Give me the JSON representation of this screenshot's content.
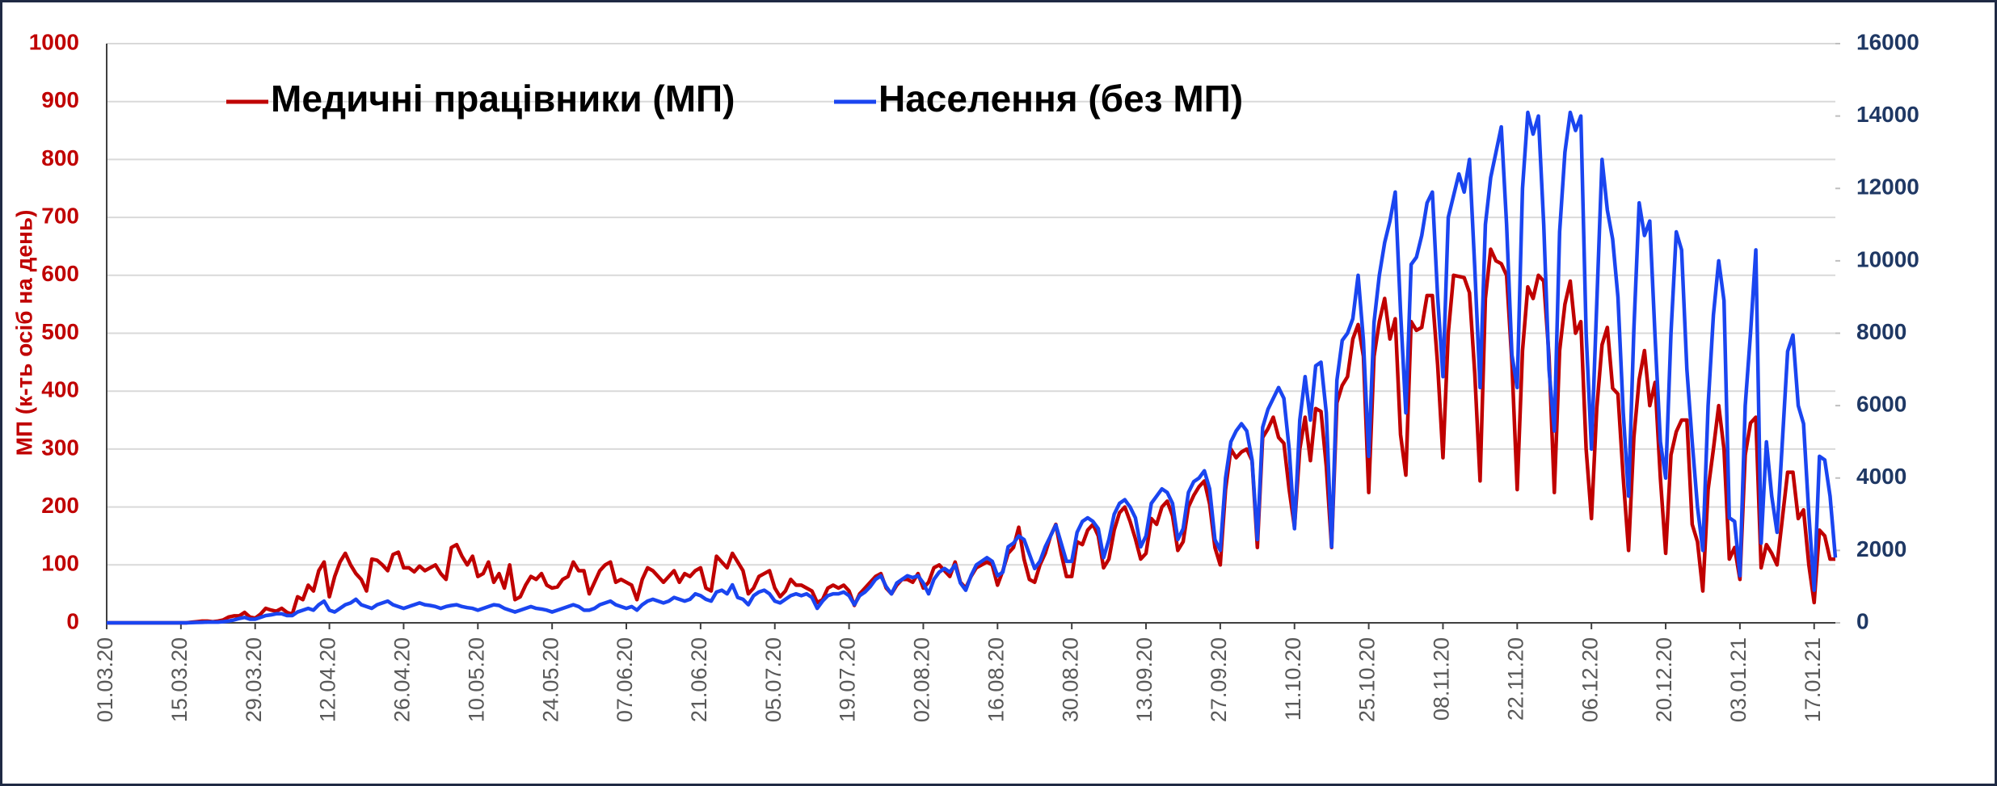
{
  "chart_data": {
    "type": "line",
    "ylabel": "МП (к-ть осіб на день)",
    "legend": "top-left",
    "grid": true,
    "ylim": [
      0,
      1000
    ],
    "yticks": [
      0,
      100,
      200,
      300,
      400,
      500,
      600,
      700,
      800,
      900,
      1000
    ],
    "y2lim": [
      0,
      16000
    ],
    "y2ticks": [
      0,
      2000,
      4000,
      6000,
      8000,
      10000,
      12000,
      14000,
      16000
    ],
    "categories": [
      "01.03.20",
      null,
      null,
      null,
      null,
      null,
      null,
      null,
      null,
      null,
      null,
      null,
      null,
      null,
      "15.03.20",
      null,
      null,
      null,
      null,
      null,
      null,
      null,
      null,
      null,
      null,
      null,
      null,
      null,
      "29.03.20",
      null,
      null,
      null,
      null,
      null,
      null,
      null,
      null,
      null,
      null,
      null,
      null,
      null,
      "12.04.20",
      null,
      null,
      null,
      null,
      null,
      null,
      null,
      null,
      null,
      null,
      null,
      null,
      null,
      "26.04.20",
      null,
      null,
      null,
      null,
      null,
      null,
      null,
      null,
      null,
      null,
      null,
      null,
      null,
      "10.05.20",
      null,
      null,
      null,
      null,
      null,
      null,
      null,
      null,
      null,
      null,
      null,
      null,
      null,
      "24.05.20",
      null,
      null,
      null,
      null,
      null,
      null,
      null,
      null,
      null,
      null,
      null,
      null,
      null,
      "07.06.20",
      null,
      null,
      null,
      null,
      null,
      null,
      null,
      null,
      null,
      null,
      null,
      null,
      null,
      "21.06.20",
      null,
      null,
      null,
      null,
      null,
      null,
      null,
      null,
      null,
      null,
      null,
      null,
      null,
      "05.07.20",
      null,
      null,
      null,
      null,
      null,
      null,
      null,
      null,
      null,
      null,
      null,
      null,
      null,
      "19.07.20",
      null,
      null,
      null,
      null,
      null,
      null,
      null,
      null,
      null,
      null,
      null,
      null,
      null,
      "02.08.20",
      null,
      null,
      null,
      null,
      null,
      null,
      null,
      null,
      null,
      null,
      null,
      null,
      null,
      "16.08.20",
      null,
      null,
      null,
      null,
      null,
      null,
      null,
      null,
      null,
      null,
      null,
      null,
      null,
      "30.08.20",
      null,
      null,
      null,
      null,
      null,
      null,
      null,
      null,
      null,
      null,
      null,
      null,
      null,
      "13.09.20",
      null,
      null,
      null,
      null,
      null,
      null,
      null,
      null,
      null,
      null,
      null,
      null,
      null,
      "27.09.20",
      null,
      null,
      null,
      null,
      null,
      null,
      null,
      null,
      null,
      null,
      null,
      null,
      null,
      "11.10.20",
      null,
      null,
      null,
      null,
      null,
      null,
      null,
      null,
      null,
      null,
      null,
      null,
      null,
      "25.10.20",
      null,
      null,
      null,
      null,
      null,
      null,
      null,
      null,
      null,
      null,
      null,
      null,
      null,
      "08.11.20",
      null,
      null,
      null,
      null,
      null,
      null,
      null,
      null,
      null,
      null,
      null,
      null,
      null,
      "22.11.20",
      null,
      null,
      null,
      null,
      null,
      null,
      null,
      null,
      null,
      null,
      null,
      null,
      null,
      "06.12.20",
      null,
      null,
      null,
      null,
      null,
      null,
      null,
      null,
      null,
      null,
      null,
      null,
      null,
      "20.12.20",
      null,
      null,
      null,
      null,
      null,
      null,
      null,
      null,
      null,
      null,
      null,
      null,
      null,
      "03.01.21",
      null,
      null,
      null,
      null,
      null,
      null,
      null,
      null,
      null,
      null,
      null,
      null,
      null,
      "17.01.21",
      null,
      null,
      null,
      null
    ],
    "series": [
      {
        "name": "Медичні працівники (МП)",
        "color": "#c00000",
        "values": [
          0,
          0,
          0,
          0,
          0,
          0,
          0,
          0,
          0,
          0,
          0,
          0,
          0,
          0,
          0,
          0,
          1,
          2,
          3,
          3,
          2,
          3,
          5,
          10,
          12,
          12,
          18,
          10,
          8,
          15,
          25,
          22,
          20,
          25,
          18,
          15,
          45,
          40,
          65,
          55,
          90,
          105,
          45,
          80,
          105,
          120,
          100,
          85,
          75,
          55,
          110,
          108,
          100,
          90,
          118,
          122,
          95,
          95,
          88,
          98,
          90,
          95,
          100,
          85,
          75,
          130,
          135,
          115,
          100,
          115,
          80,
          85,
          105,
          70,
          85,
          60,
          100,
          40,
          45,
          65,
          80,
          75,
          85,
          65,
          60,
          62,
          75,
          80,
          105,
          90,
          90,
          50,
          70,
          90,
          100,
          105,
          70,
          75,
          70,
          65,
          40,
          75,
          95,
          90,
          80,
          70,
          80,
          90,
          70,
          85,
          80,
          90,
          95,
          60,
          55,
          115,
          105,
          95,
          120,
          105,
          90,
          50,
          60,
          80,
          85,
          90,
          60,
          45,
          55,
          75,
          65,
          65,
          60,
          55,
          35,
          40,
          60,
          65,
          60,
          65,
          55,
          30,
          50,
          60,
          70,
          80,
          85,
          60,
          50,
          65,
          75,
          75,
          70,
          85,
          60,
          70,
          95,
          100,
          90,
          80,
          105,
          70,
          60,
          80,
          95,
          100,
          105,
          100,
          65,
          90,
          120,
          130,
          165,
          110,
          75,
          70,
          100,
          120,
          150,
          170,
          120,
          80,
          80,
          140,
          135,
          160,
          170,
          150,
          95,
          110,
          160,
          190,
          200,
          175,
          145,
          110,
          120,
          180,
          170,
          200,
          210,
          185,
          125,
          140,
          200,
          220,
          235,
          245,
          205,
          130,
          100,
          230,
          300,
          285,
          295,
          300,
          280,
          130,
          320,
          335,
          355,
          320,
          310,
          230,
          165,
          300,
          355,
          280,
          370,
          365,
          270,
          130,
          380,
          410,
          425,
          490,
          515,
          460,
          225,
          460,
          520,
          560,
          490,
          525,
          325,
          255,
          520,
          505,
          510,
          565,
          565,
          445,
          285,
          500,
          600,
          598,
          596,
          570,
          430,
          245,
          560,
          645,
          625,
          620,
          600,
          450,
          230,
          470,
          580,
          560,
          600,
          590,
          460,
          225,
          470,
          550,
          590,
          500,
          520,
          300,
          180,
          370,
          480,
          510,
          405,
          395,
          250,
          125,
          320,
          420,
          470,
          375,
          415,
          250,
          120,
          290,
          330,
          350,
          350,
          170,
          140,
          55,
          230,
          300,
          375,
          300,
          110,
          130,
          75,
          290,
          345,
          355,
          95,
          135,
          120,
          100,
          180,
          260,
          260,
          180,
          195,
          100,
          35,
          160,
          150,
          110,
          110
        ]
      },
      {
        "name": "Населення (без МП)",
        "color": "#1a45f0",
        "axis": "y2",
        "values": [
          0,
          0,
          0,
          0,
          0,
          0,
          0,
          0,
          0,
          0,
          0,
          0,
          0,
          0,
          0,
          0,
          5,
          10,
          15,
          20,
          20,
          20,
          30,
          50,
          80,
          120,
          150,
          100,
          100,
          150,
          200,
          220,
          250,
          250,
          200,
          200,
          300,
          350,
          400,
          350,
          500,
          600,
          350,
          300,
          400,
          500,
          550,
          650,
          500,
          450,
          400,
          500,
          550,
          600,
          500,
          450,
          400,
          450,
          500,
          550,
          500,
          480,
          450,
          400,
          450,
          480,
          500,
          450,
          420,
          400,
          350,
          400,
          450,
          500,
          480,
          400,
          350,
          300,
          350,
          400,
          450,
          400,
          380,
          350,
          300,
          350,
          400,
          450,
          500,
          450,
          350,
          350,
          400,
          500,
          550,
          600,
          500,
          450,
          400,
          450,
          350,
          500,
          600,
          650,
          600,
          550,
          600,
          700,
          650,
          600,
          650,
          800,
          750,
          650,
          600,
          850,
          900,
          800,
          1050,
          700,
          650,
          500,
          750,
          850,
          900,
          800,
          600,
          550,
          650,
          750,
          800,
          750,
          800,
          700,
          400,
          600,
          750,
          800,
          800,
          850,
          750,
          500,
          750,
          850,
          1000,
          1200,
          1300,
          1000,
          800,
          1100,
          1200,
          1300,
          1250,
          1300,
          1100,
          800,
          1200,
          1400,
          1500,
          1400,
          1600,
          1100,
          900,
          1300,
          1600,
          1700,
          1800,
          1700,
          1300,
          1400,
          2100,
          2200,
          2400,
          2300,
          1900,
          1500,
          1700,
          2100,
          2400,
          2700,
          2200,
          1700,
          1700,
          2500,
          2800,
          2900,
          2800,
          2600,
          1800,
          2300,
          3000,
          3300,
          3400,
          3200,
          2900,
          2100,
          2400,
          3300,
          3500,
          3700,
          3600,
          3300,
          2300,
          2600,
          3600,
          3900,
          4000,
          4200,
          3700,
          2300,
          2000,
          4000,
          5000,
          5300,
          5500,
          5300,
          4500,
          2300,
          5400,
          5900,
          6200,
          6500,
          6200,
          4800,
          2600,
          5600,
          6800,
          5600,
          7100,
          7200,
          5800,
          2100,
          6700,
          7800,
          8000,
          8400,
          9600,
          7800,
          4600,
          8300,
          9600,
          10500,
          11100,
          11900,
          8600,
          5800,
          9900,
          10100,
          10700,
          11600,
          11900,
          9000,
          6800,
          11200,
          11800,
          12400,
          11900,
          12800,
          9800,
          6500,
          11000,
          12300,
          13000,
          13700,
          11000,
          7400,
          6500,
          12000,
          14100,
          13500,
          14000,
          11000,
          7000,
          5300,
          10800,
          13000,
          14100,
          13600,
          14000,
          8000,
          4800,
          8800,
          12800,
          11400,
          10600,
          9000,
          5800,
          3500,
          8100,
          11600,
          10700,
          11100,
          7900,
          5000,
          4000,
          8000,
          10800,
          10300,
          7000,
          5000,
          3200,
          2000,
          6000,
          8500,
          10000,
          8900,
          2900,
          2800,
          1300,
          6000,
          8000,
          10300,
          2200,
          5000,
          3500,
          2500,
          5000,
          7500,
          7950,
          6000,
          5500,
          3000,
          900,
          4600,
          4500,
          3500,
          1800
        ]
      }
    ]
  }
}
